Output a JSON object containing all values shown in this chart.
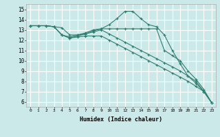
{
  "xlabel": "Humidex (Indice chaleur)",
  "ylabel": "",
  "bg_color": "#cce9e9",
  "grid_color": "#ffffff",
  "line_color": "#2e7d6e",
  "marker_color": "#2e7d6e",
  "xlim": [
    -0.5,
    23.5
  ],
  "ylim": [
    5.5,
    15.5
  ],
  "xticks": [
    0,
    1,
    2,
    3,
    4,
    5,
    6,
    7,
    8,
    9,
    10,
    11,
    12,
    13,
    14,
    15,
    16,
    17,
    18,
    19,
    20,
    21,
    22,
    23
  ],
  "yticks": [
    6,
    7,
    8,
    9,
    10,
    11,
    12,
    13,
    14,
    15
  ],
  "series": [
    {
      "x": [
        0,
        1,
        2,
        3,
        4,
        5,
        6,
        7,
        8,
        9,
        10,
        11,
        12,
        13,
        14,
        15,
        16,
        17,
        18,
        19,
        20,
        21,
        22,
        23
      ],
      "y": [
        13.4,
        13.4,
        13.4,
        13.3,
        13.2,
        12.5,
        12.5,
        12.6,
        12.9,
        13.1,
        13.5,
        14.1,
        14.8,
        14.8,
        14.1,
        13.5,
        13.3,
        12.5,
        11.0,
        9.7,
        8.5,
        7.8,
        7.0,
        5.9
      ]
    },
    {
      "x": [
        0,
        1,
        2,
        3,
        4,
        5,
        6,
        7,
        8,
        9,
        10,
        11,
        12,
        13,
        14,
        15,
        16,
        17,
        18,
        19,
        20,
        21,
        22,
        23
      ],
      "y": [
        13.4,
        13.4,
        13.4,
        13.3,
        12.5,
        12.3,
        12.5,
        12.7,
        13.0,
        13.1,
        13.1,
        13.1,
        13.1,
        13.1,
        13.1,
        13.1,
        13.1,
        11.0,
        10.5,
        10.0,
        9.0,
        8.2,
        7.2,
        5.9
      ]
    },
    {
      "x": [
        0,
        1,
        2,
        3,
        4,
        5,
        6,
        7,
        8,
        9,
        10,
        11,
        12,
        13,
        14,
        15,
        16,
        17,
        18,
        19,
        20,
        21,
        22,
        23
      ],
      "y": [
        13.4,
        13.4,
        13.4,
        13.3,
        12.5,
        12.2,
        12.4,
        12.6,
        12.8,
        13.0,
        12.6,
        12.2,
        11.8,
        11.4,
        11.0,
        10.6,
        10.2,
        9.8,
        9.4,
        9.0,
        8.5,
        8.0,
        7.0,
        5.9
      ]
    },
    {
      "x": [
        0,
        1,
        2,
        3,
        4,
        5,
        6,
        7,
        8,
        9,
        10,
        11,
        12,
        13,
        14,
        15,
        16,
        17,
        18,
        19,
        20,
        21,
        22,
        23
      ],
      "y": [
        13.4,
        13.4,
        13.4,
        13.3,
        12.5,
        12.2,
        12.3,
        12.4,
        12.4,
        12.4,
        12.0,
        11.6,
        11.2,
        10.8,
        10.4,
        10.0,
        9.6,
        9.2,
        8.8,
        8.4,
        8.0,
        7.5,
        7.0,
        5.9
      ]
    }
  ]
}
